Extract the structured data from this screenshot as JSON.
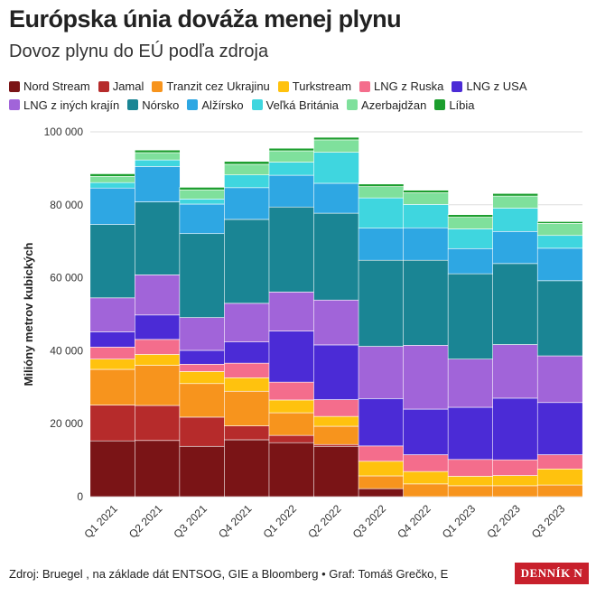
{
  "header": {
    "title": "Európska únia dováža menej plynu",
    "subtitle": "Dovoz plynu do EÚ podľa zdroja"
  },
  "footer": {
    "source": "Zdroj: Bruegel , na základe dát ENTSOG, GIE a Bloomberg • Graf: Tomáš Grečko, E",
    "logo": "DENNÍK N"
  },
  "chart_data": {
    "type": "bar",
    "stacked": true,
    "title": "Európska únia dováža menej plynu",
    "subtitle": "Dovoz plynu do EÚ podľa zdroja",
    "xlabel": "",
    "ylabel": "Milióny metrov kubických",
    "ylim": [
      0,
      100000
    ],
    "yticks": [
      0,
      20000,
      40000,
      60000,
      80000,
      100000
    ],
    "ytick_labels": [
      "0",
      "20 000",
      "40 000",
      "60 000",
      "80 000",
      "100 000"
    ],
    "grid": true,
    "legend_position": "top",
    "categories": [
      "Q1 2021",
      "Q2 2021",
      "Q3 2021",
      "Q4 2021",
      "Q1 2022",
      "Q2 2022",
      "Q3 2022",
      "Q4 2022",
      "Q1 2023",
      "Q2 2023",
      "Q3 2023"
    ],
    "series": [
      {
        "name": "Nord Stream",
        "color": "#7a1416",
        "values": [
          15300,
          15400,
          13800,
          15600,
          14800,
          13800,
          2200,
          0,
          0,
          0,
          0
        ]
      },
      {
        "name": "Jamal",
        "color": "#b62b2b",
        "values": [
          9800,
          9600,
          8000,
          3800,
          2000,
          500,
          0,
          0,
          0,
          0,
          0
        ]
      },
      {
        "name": "Tranzit cez Ukrajinu",
        "color": "#f7941d",
        "values": [
          9800,
          11000,
          9200,
          9500,
          6200,
          5000,
          3500,
          3500,
          3000,
          3000,
          3200
        ]
      },
      {
        "name": "Turkstream",
        "color": "#ffc20e",
        "values": [
          2800,
          3000,
          3300,
          3700,
          3500,
          2700,
          4000,
          3400,
          2600,
          2800,
          4400
        ]
      },
      {
        "name": "LNG z Ruska",
        "color": "#f46d8c",
        "values": [
          3300,
          4100,
          2000,
          4000,
          4900,
          4600,
          4200,
          4600,
          4600,
          4300,
          3900
        ]
      },
      {
        "name": "LNG z USA",
        "color": "#4b2bd6",
        "values": [
          4200,
          6700,
          3800,
          5800,
          14000,
          15000,
          13000,
          12500,
          14300,
          16900,
          14300
        ]
      },
      {
        "name": "LNG z iných krajín",
        "color": "#a164d9",
        "values": [
          9300,
          11000,
          9000,
          10600,
          10700,
          12300,
          14300,
          17500,
          13200,
          14700,
          12800
        ]
      },
      {
        "name": "Nórsko",
        "color": "#1a8594",
        "values": [
          20100,
          20000,
          23000,
          23000,
          23300,
          23800,
          23600,
          23300,
          23400,
          22200,
          20600
        ]
      },
      {
        "name": "Alžírsko",
        "color": "#2ea7e3",
        "values": [
          10000,
          9700,
          8100,
          8700,
          8700,
          8200,
          8800,
          8900,
          6900,
          8800,
          8900
        ]
      },
      {
        "name": "Veľká Británia",
        "color": "#3fd6df",
        "values": [
          1500,
          1800,
          1400,
          3500,
          3600,
          8500,
          8300,
          6400,
          5400,
          6400,
          3500
        ]
      },
      {
        "name": "Azerbajdžan",
        "color": "#7fe09c",
        "values": [
          1700,
          2000,
          2500,
          2900,
          3100,
          3400,
          3100,
          3200,
          3200,
          3300,
          3300
        ]
      },
      {
        "name": "Líbia",
        "color": "#1c9e2e",
        "values": [
          700,
          700,
          700,
          800,
          700,
          700,
          700,
          700,
          700,
          700,
          500
        ]
      }
    ]
  }
}
